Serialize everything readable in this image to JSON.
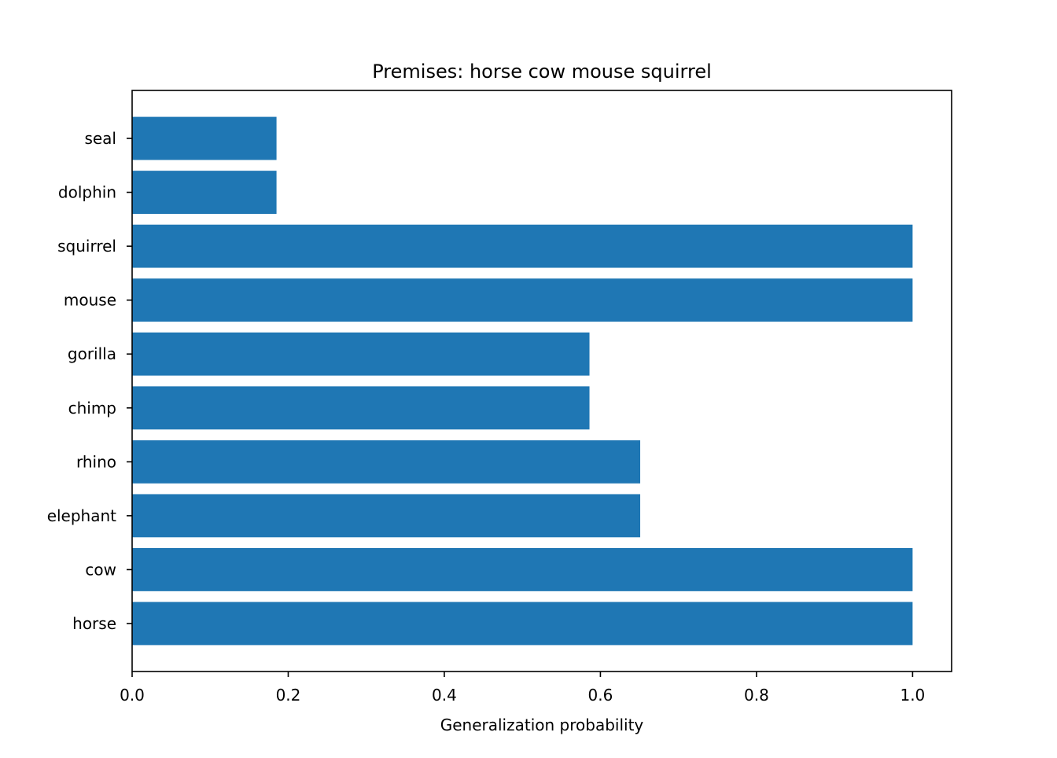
{
  "chart_data": {
    "type": "bar",
    "orientation": "horizontal",
    "title": "Premises: horse cow mouse squirrel",
    "xlabel": "Generalization probability",
    "ylabel": "",
    "categories": [
      "horse",
      "cow",
      "elephant",
      "rhino",
      "chimp",
      "gorilla",
      "mouse",
      "squirrel",
      "dolphin",
      "seal"
    ],
    "values": [
      1.0,
      1.0,
      0.651,
      0.651,
      0.586,
      0.586,
      1.0,
      1.0,
      0.185,
      0.185
    ],
    "xlim": [
      0.0,
      1.05
    ],
    "xticks": [
      "0.0",
      "0.2",
      "0.4",
      "0.6",
      "0.8",
      "1.0"
    ],
    "grid": false,
    "bar_color": "#1f77b4"
  }
}
